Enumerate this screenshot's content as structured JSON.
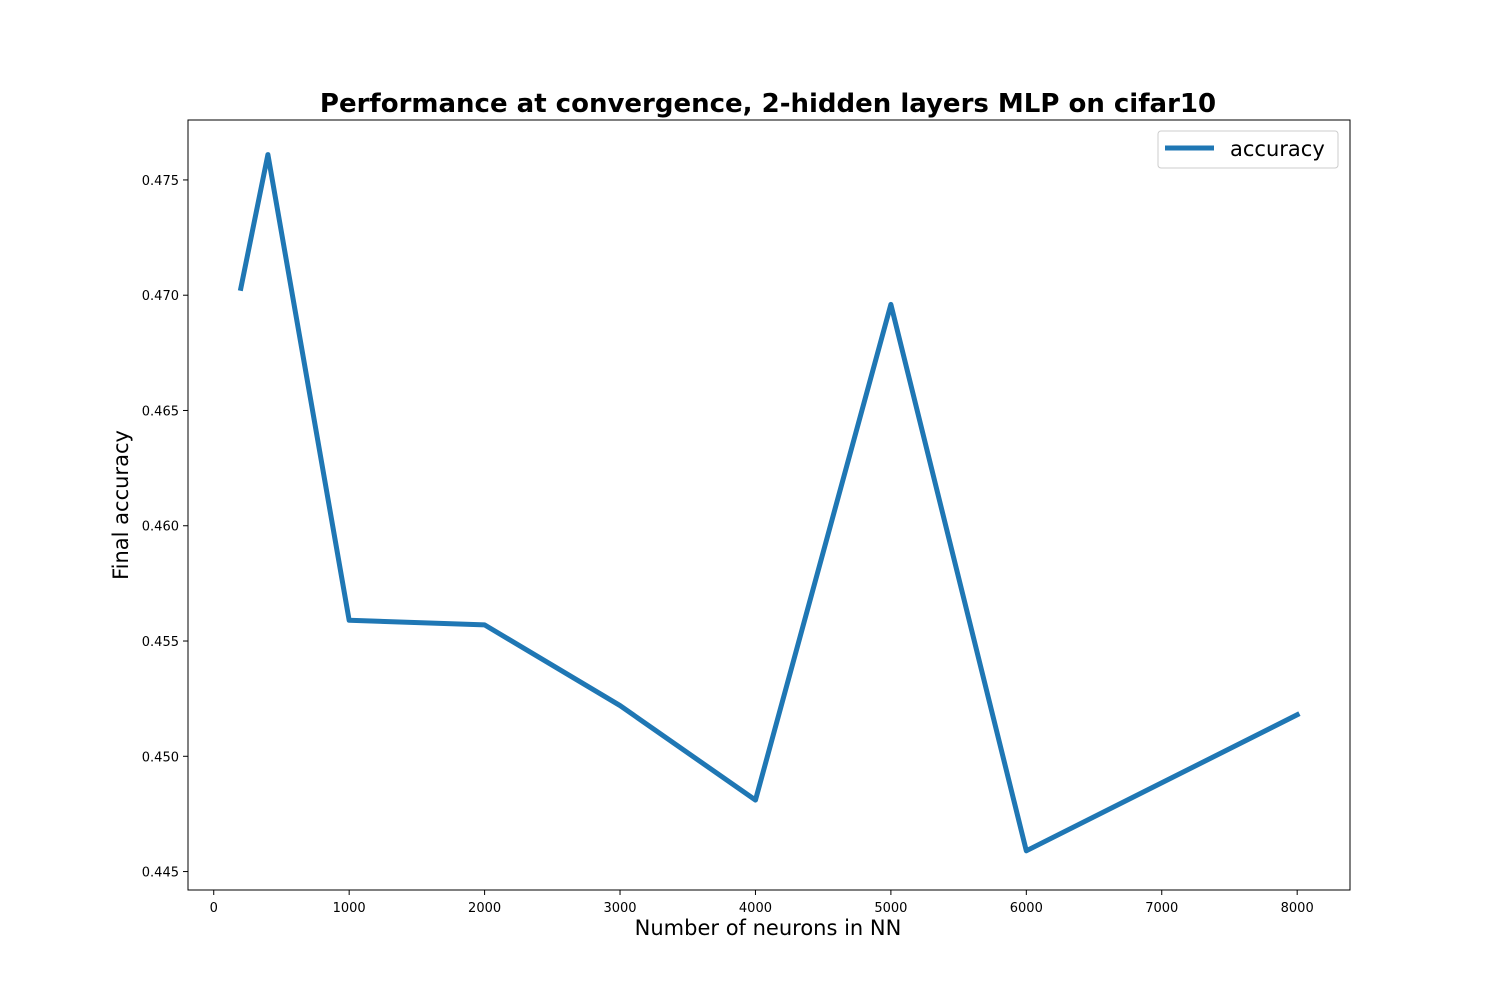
{
  "chart_data": {
    "type": "line",
    "title": "Performance at convergence, 2-hidden layers MLP on cifar10",
    "xlabel": "Number of neurons in NN",
    "ylabel": "Final accuracy",
    "xlim": [
      -190,
      8390
    ],
    "ylim": [
      0.4442,
      0.4776
    ],
    "x_ticks": [
      0,
      1000,
      2000,
      3000,
      4000,
      5000,
      6000,
      7000,
      8000
    ],
    "x_tick_labels": [
      "0",
      "1000",
      "2000",
      "3000",
      "4000",
      "5000",
      "6000",
      "7000",
      "8000"
    ],
    "y_ticks": [
      0.445,
      0.45,
      0.455,
      0.46,
      0.465,
      0.47,
      0.475
    ],
    "y_tick_labels": [
      "0.445",
      "0.450",
      "0.455",
      "0.460",
      "0.465",
      "0.470",
      "0.475"
    ],
    "grid": false,
    "legend_position": "top-right",
    "series": [
      {
        "name": "accuracy",
        "color": "#1f77b4",
        "x": [
          200,
          400,
          1000,
          2000,
          3000,
          4000,
          5000,
          6000,
          8000
        ],
        "y": [
          0.4703,
          0.4761,
          0.4559,
          0.4557,
          0.4522,
          0.4481,
          0.4696,
          0.4459,
          0.4518
        ]
      }
    ]
  }
}
